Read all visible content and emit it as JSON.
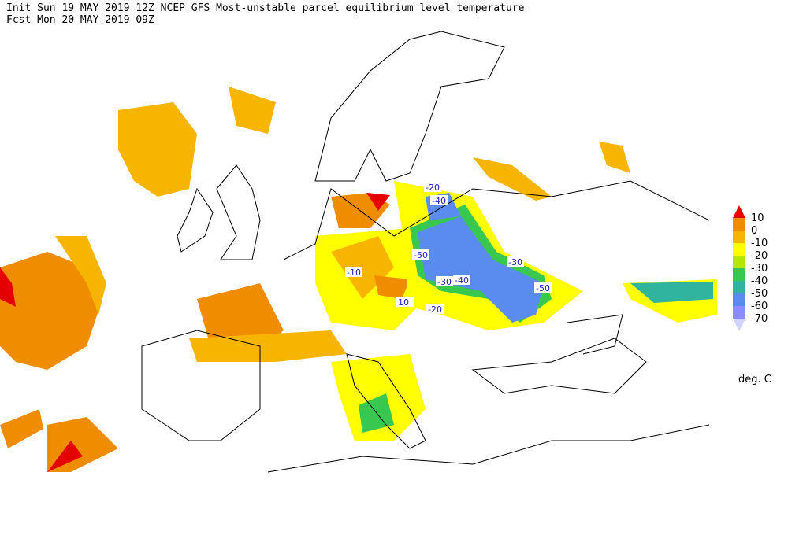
{
  "header": {
    "init": "Init  Sun 19 MAY 2019 12Z  NCEP GFS Most-unstable parcel equilibrium level temperature",
    "fcst": "Fcst Mon 20 MAY 2019 09Z"
  },
  "legend": {
    "levels": [
      10,
      0,
      -10,
      -20,
      -30,
      -40,
      -50,
      -60,
      -70
    ],
    "colors": [
      "#e40000",
      "#f08c00",
      "#f7b400",
      "#ffff00",
      "#b4e600",
      "#38c850",
      "#30b4a0",
      "#5a8cf0",
      "#8c8cff",
      "#d2d2ff"
    ],
    "unit": "deg. C"
  },
  "map": {
    "contour_labels": [
      "-20",
      "-40",
      "-50",
      "-10",
      "-30",
      "-40",
      "-30",
      "-50",
      "10",
      "-20"
    ]
  }
}
